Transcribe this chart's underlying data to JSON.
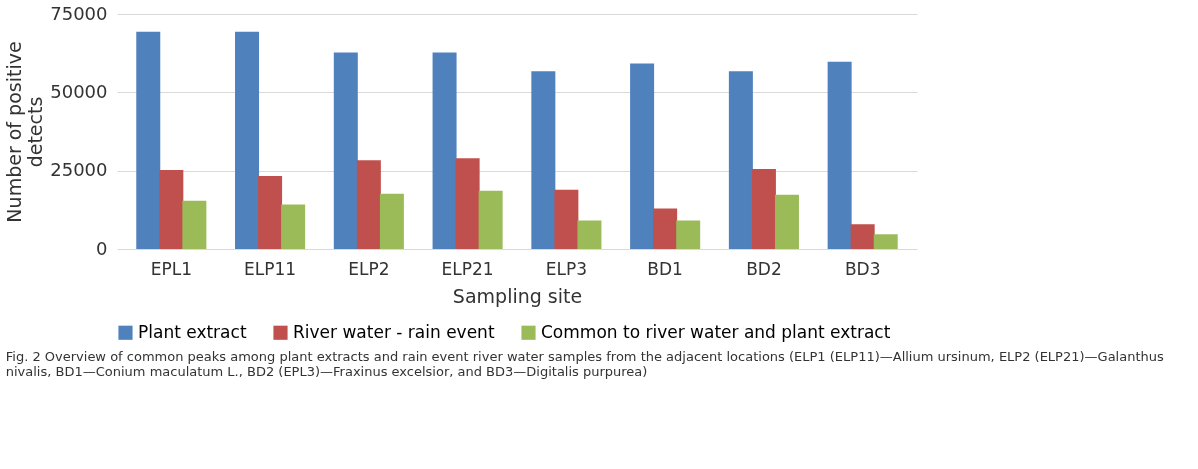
{
  "chart_data": {
    "type": "bar",
    "xlabel": "Sampling site",
    "ylabel": "Number of positive detects",
    "categories": [
      "EPL1",
      "ELP11",
      "ELP2",
      "ELP21",
      "ELP3",
      "BD1",
      "BD2",
      "BD3"
    ],
    "series": [
      {
        "name": "Plant extract",
        "color": "#4f81bd",
        "values": [
          69300,
          69300,
          62700,
          62700,
          56700,
          59200,
          56700,
          59800
        ]
      },
      {
        "name": "River water - rain event",
        "color": "#c0504d",
        "values": [
          25200,
          23300,
          28300,
          29000,
          18900,
          12900,
          25500,
          7900
        ]
      },
      {
        "name": "Common to river water and plant extract",
        "color": "#9bbb59",
        "values": [
          15400,
          14200,
          17600,
          18600,
          9100,
          9100,
          17300,
          4700
        ]
      }
    ],
    "ylim": [
      0,
      75000
    ],
    "yticks": [
      0,
      25000,
      50000,
      75000
    ],
    "grid": "y",
    "legend": "bottom",
    "annotations": [
      "Fig. 2  Overview of common peaks among plant extracts and rain event river water samples from the adjacent locations (ELP1 (ELP11)—Allium ursinum, ELP2 (ELP21)—Galanthus nivalis, BD1—Conium maculatum L., BD2 (EPL3)—Fraxinus excelsior, and BD3—Digitalis purpurea)"
    ]
  }
}
